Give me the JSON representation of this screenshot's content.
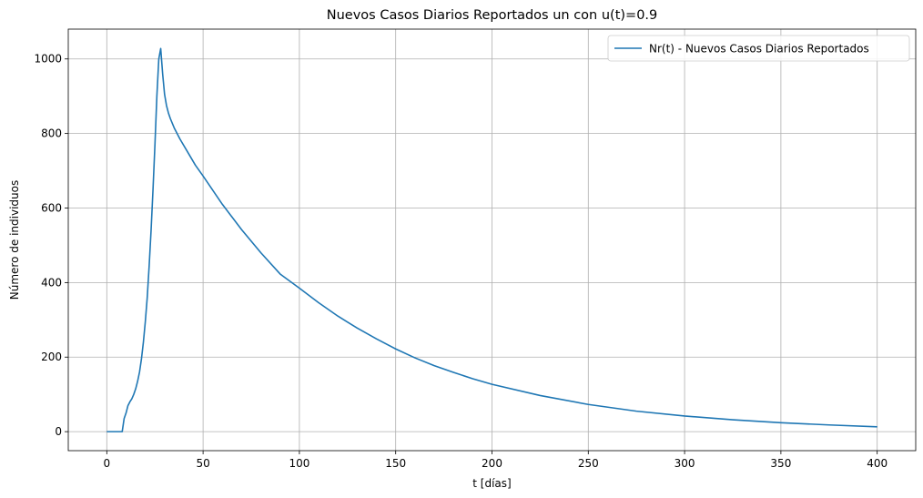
{
  "chart_data": {
    "type": "line",
    "title": "Nuevos Casos Diarios Reportados un con u(t)=0.9",
    "xlabel": "t [días]",
    "ylabel": "Número de individuos",
    "xlim": [
      -20,
      420
    ],
    "ylim": [
      -51,
      1080
    ],
    "xticks": [
      0,
      50,
      100,
      150,
      200,
      250,
      300,
      350,
      400
    ],
    "yticks": [
      0,
      200,
      400,
      600,
      800,
      1000
    ],
    "grid": true,
    "legend_position": "top-right",
    "series": [
      {
        "name": "Nr(t) - Nuevos Casos Diarios Reportados",
        "color": "#1f77b4",
        "x": [
          0,
          8,
          9,
          10,
          11,
          12,
          13,
          14,
          15,
          16,
          17,
          18,
          19,
          20,
          21,
          22,
          23,
          24,
          25,
          26,
          27,
          28,
          29,
          30,
          31,
          32,
          33,
          35,
          38,
          42,
          46,
          50,
          60,
          70,
          80,
          90,
          100,
          110,
          120,
          130,
          140,
          150,
          160,
          170,
          180,
          190,
          200,
          225,
          250,
          275,
          300,
          325,
          350,
          375,
          400
        ],
        "y": [
          0,
          0,
          35,
          50,
          70,
          80,
          88,
          100,
          115,
          135,
          160,
          195,
          240,
          295,
          360,
          445,
          540,
          650,
          770,
          900,
          1000,
          1028,
          960,
          905,
          875,
          855,
          840,
          815,
          785,
          750,
          715,
          686,
          610,
          542,
          480,
          423,
          385,
          346,
          310,
          278,
          249,
          222,
          198,
          177,
          159,
          142,
          127,
          97,
          73,
          55,
          42,
          32,
          24,
          18,
          13
        ]
      }
    ]
  }
}
